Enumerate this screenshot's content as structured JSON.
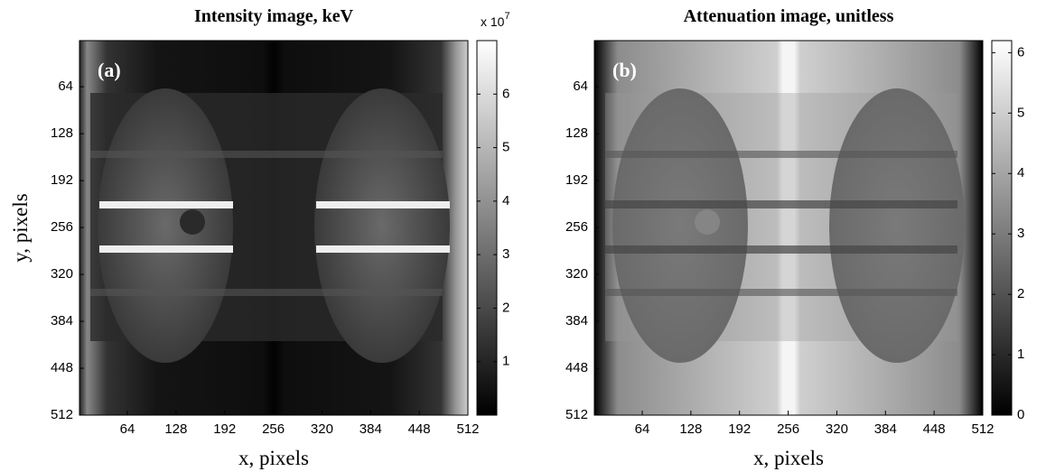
{
  "chart_data": [
    {
      "type": "image",
      "title": "Intensity image, keV",
      "xlabel": "x, pixels",
      "ylabel": "y, pixels",
      "panel_label": "(a)",
      "xlim": [
        1,
        512
      ],
      "ylim": [
        512,
        1
      ],
      "xticks": [
        64,
        128,
        192,
        256,
        320,
        384,
        448,
        512
      ],
      "yticks": [
        64,
        128,
        192,
        256,
        320,
        384,
        448,
        512
      ],
      "colormap": "gray",
      "colorbar": {
        "clim": [
          0,
          7
        ],
        "ticks": [
          1,
          2,
          3,
          4,
          5,
          6
        ],
        "scale_label": "x 10",
        "scale_exponent": "7"
      }
    },
    {
      "type": "image",
      "title": "Attenuation image, unitless",
      "xlabel": "x, pixels",
      "panel_label": "(b)",
      "xlim": [
        1,
        512
      ],
      "ylim": [
        512,
        1
      ],
      "xticks": [
        64,
        128,
        192,
        256,
        320,
        384,
        448,
        512
      ],
      "yticks": [
        64,
        128,
        192,
        256,
        320,
        384,
        448,
        512
      ],
      "colormap": "gray",
      "colorbar": {
        "clim": [
          0,
          6.2
        ],
        "ticks": [
          0,
          1,
          2,
          3,
          4,
          5,
          6
        ]
      }
    }
  ]
}
